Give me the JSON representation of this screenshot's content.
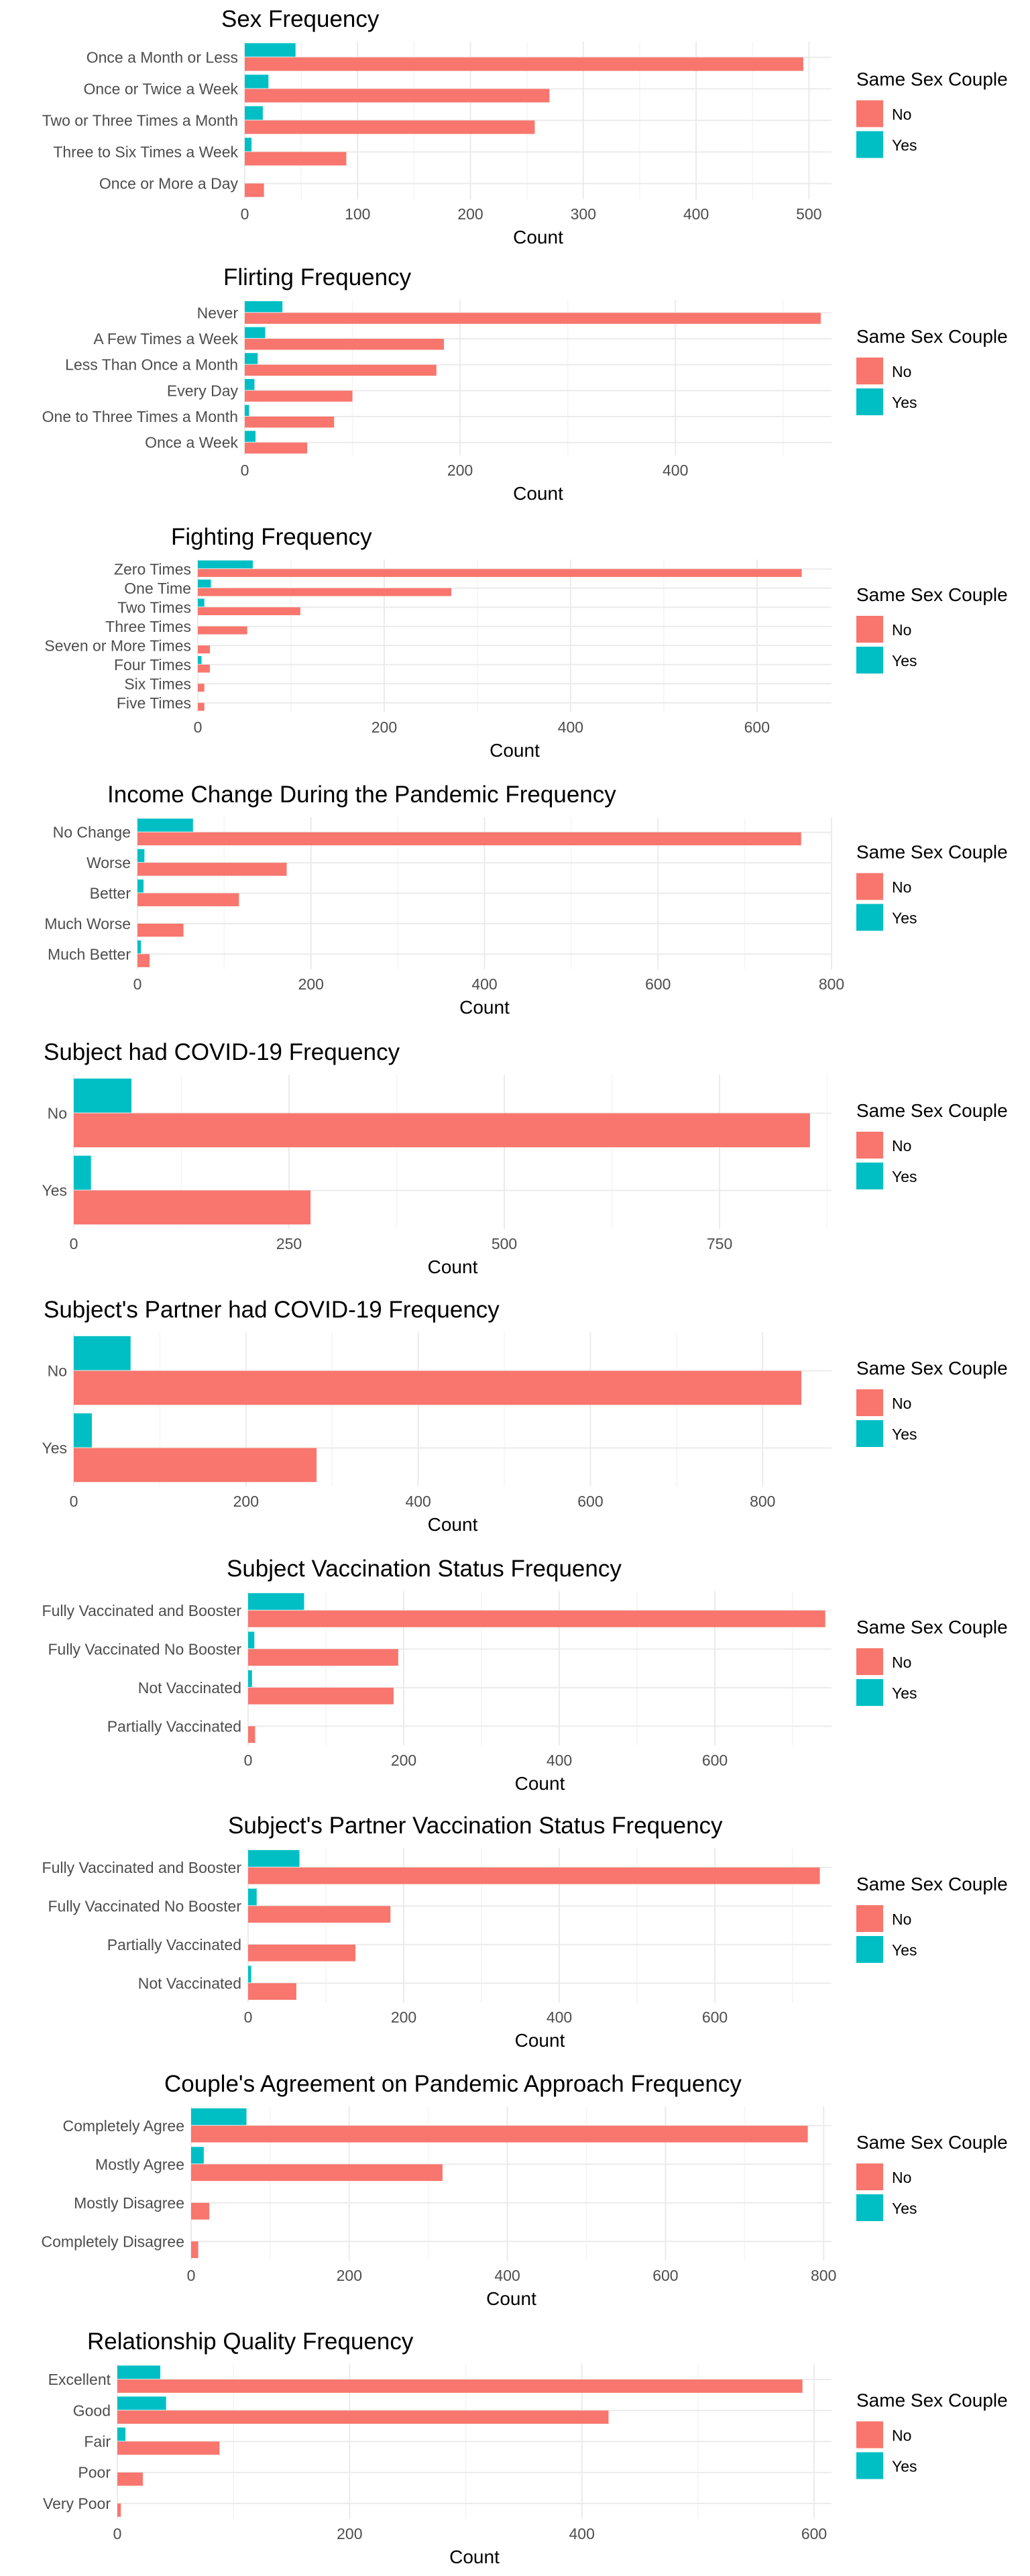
{
  "colors": {
    "No": "#F8766D",
    "Yes": "#00BFC4",
    "grid_major": "#ebebeb",
    "grid_minor": "#f4f4f4"
  },
  "legend": {
    "title": "Same Sex Couple",
    "items": [
      "No",
      "Yes"
    ]
  },
  "chart_data": [
    {
      "type": "bar",
      "title": "Sex Frequency",
      "xlabel": "Count",
      "ylabel": "",
      "xlim": [
        0,
        520
      ],
      "xticks": [
        0,
        100,
        200,
        300,
        400,
        500
      ],
      "grid": true,
      "legend_position": "right",
      "categories": [
        "Once a Month or Less",
        "Once or Twice a Week",
        "Two or Three Times a Month",
        "Three to Six Times a Week",
        "Once or More a Day"
      ],
      "series": [
        {
          "name": "No",
          "values": [
            495,
            270,
            257,
            90,
            17
          ]
        },
        {
          "name": "Yes",
          "values": [
            45,
            21,
            16,
            6,
            0
          ]
        }
      ]
    },
    {
      "type": "bar",
      "title": "Flirting Frequency",
      "xlabel": "Count",
      "ylabel": "",
      "xlim": [
        0,
        545
      ],
      "xticks": [
        0,
        200,
        400
      ],
      "grid": true,
      "legend_position": "right",
      "categories": [
        "Never",
        "A Few Times a Week",
        "Less Than Once a Month",
        "Every Day",
        "One to Three Times a Month",
        "Once a Week"
      ],
      "series": [
        {
          "name": "No",
          "values": [
            535,
            185,
            178,
            100,
            83,
            58
          ]
        },
        {
          "name": "Yes",
          "values": [
            35,
            19,
            12,
            9,
            4,
            10
          ]
        }
      ]
    },
    {
      "type": "bar",
      "title": "Fighting Frequency",
      "xlabel": "Count",
      "ylabel": "",
      "xlim": [
        0,
        680
      ],
      "xticks": [
        0,
        200,
        400,
        600
      ],
      "grid": true,
      "legend_position": "right",
      "categories": [
        "Zero Times",
        "One Time",
        "Two Times",
        "Three Times",
        "Seven or More Times",
        "Four Times",
        "Six Times",
        "Five Times"
      ],
      "series": [
        {
          "name": "No",
          "values": [
            648,
            272,
            110,
            53,
            13,
            13,
            7,
            7
          ]
        },
        {
          "name": "Yes",
          "values": [
            59,
            14,
            7,
            0,
            0,
            4,
            0,
            0
          ]
        }
      ]
    },
    {
      "type": "bar",
      "title": "Income Change During the Pandemic Frequency",
      "xlabel": "Count",
      "ylabel": "",
      "xlim": [
        0,
        800
      ],
      "xticks": [
        0,
        200,
        400,
        600,
        800
      ],
      "grid": true,
      "legend_position": "right",
      "categories": [
        "No Change",
        "Worse",
        "Better",
        "Much Worse",
        "Much Better"
      ],
      "series": [
        {
          "name": "No",
          "values": [
            765,
            172,
            117,
            53,
            14
          ]
        },
        {
          "name": "Yes",
          "values": [
            64,
            8,
            7,
            0,
            4
          ]
        }
      ]
    },
    {
      "type": "bar",
      "title": "Subject had COVID-19 Frequency",
      "xlabel": "Count",
      "ylabel": "",
      "xlim": [
        0,
        880
      ],
      "xticks": [
        0,
        250,
        500,
        750
      ],
      "grid": true,
      "legend_position": "right",
      "categories": [
        "No",
        "Yes"
      ],
      "series": [
        {
          "name": "No",
          "values": [
            855,
            275
          ]
        },
        {
          "name": "Yes",
          "values": [
            67,
            20
          ]
        }
      ]
    },
    {
      "type": "bar",
      "title": "Subject's Partner had COVID-19 Frequency",
      "xlabel": "Count",
      "ylabel": "",
      "xlim": [
        0,
        880
      ],
      "xticks": [
        0,
        200,
        400,
        600,
        800
      ],
      "grid": true,
      "legend_position": "right",
      "categories": [
        "No",
        "Yes"
      ],
      "series": [
        {
          "name": "No",
          "values": [
            845,
            282
          ]
        },
        {
          "name": "Yes",
          "values": [
            66,
            21
          ]
        }
      ]
    },
    {
      "type": "bar",
      "title": "Subject Vaccination Status Frequency",
      "xlabel": "Count",
      "ylabel": "",
      "xlim": [
        0,
        750
      ],
      "xticks": [
        0,
        200,
        400,
        600
      ],
      "grid": true,
      "legend_position": "right",
      "categories": [
        "Fully Vaccinated and Booster",
        "Fully Vaccinated No Booster",
        "Not Vaccinated",
        "Partially Vaccinated"
      ],
      "series": [
        {
          "name": "No",
          "values": [
            742,
            193,
            187,
            9
          ]
        },
        {
          "name": "Yes",
          "values": [
            72,
            8,
            5,
            0
          ]
        }
      ]
    },
    {
      "type": "bar",
      "title": "Subject's Partner Vaccination Status Frequency",
      "xlabel": "Count",
      "ylabel": "",
      "xlim": [
        0,
        750
      ],
      "xticks": [
        0,
        200,
        400,
        600
      ],
      "grid": true,
      "legend_position": "right",
      "categories": [
        "Fully Vaccinated and Booster",
        "Fully Vaccinated No Booster",
        "Partially Vaccinated",
        "Not Vaccinated"
      ],
      "series": [
        {
          "name": "No",
          "values": [
            735,
            183,
            138,
            62
          ]
        },
        {
          "name": "Yes",
          "values": [
            66,
            11,
            0,
            4
          ]
        }
      ]
    },
    {
      "type": "bar",
      "title": "Couple's Agreement on Pandemic Approach Frequency",
      "xlabel": "Count",
      "ylabel": "",
      "xlim": [
        0,
        810
      ],
      "xticks": [
        0,
        200,
        400,
        600,
        800
      ],
      "grid": true,
      "legend_position": "right",
      "categories": [
        "Completely Agree",
        "Mostly Agree",
        "Mostly Disagree",
        "Completely Disagree"
      ],
      "series": [
        {
          "name": "No",
          "values": [
            780,
            318,
            23,
            9
          ]
        },
        {
          "name": "Yes",
          "values": [
            70,
            16,
            0,
            0
          ]
        }
      ]
    },
    {
      "type": "bar",
      "title": "Relationship Quality Frequency",
      "xlabel": "Count",
      "ylabel": "",
      "xlim": [
        0,
        615
      ],
      "xticks": [
        0,
        200,
        400,
        600
      ],
      "grid": true,
      "legend_position": "right",
      "categories": [
        "Excellent",
        "Good",
        "Fair",
        "Poor",
        "Very Poor"
      ],
      "series": [
        {
          "name": "No",
          "values": [
            590,
            423,
            88,
            22,
            3
          ]
        },
        {
          "name": "Yes",
          "values": [
            37,
            42,
            7,
            0,
            0
          ]
        }
      ]
    }
  ]
}
